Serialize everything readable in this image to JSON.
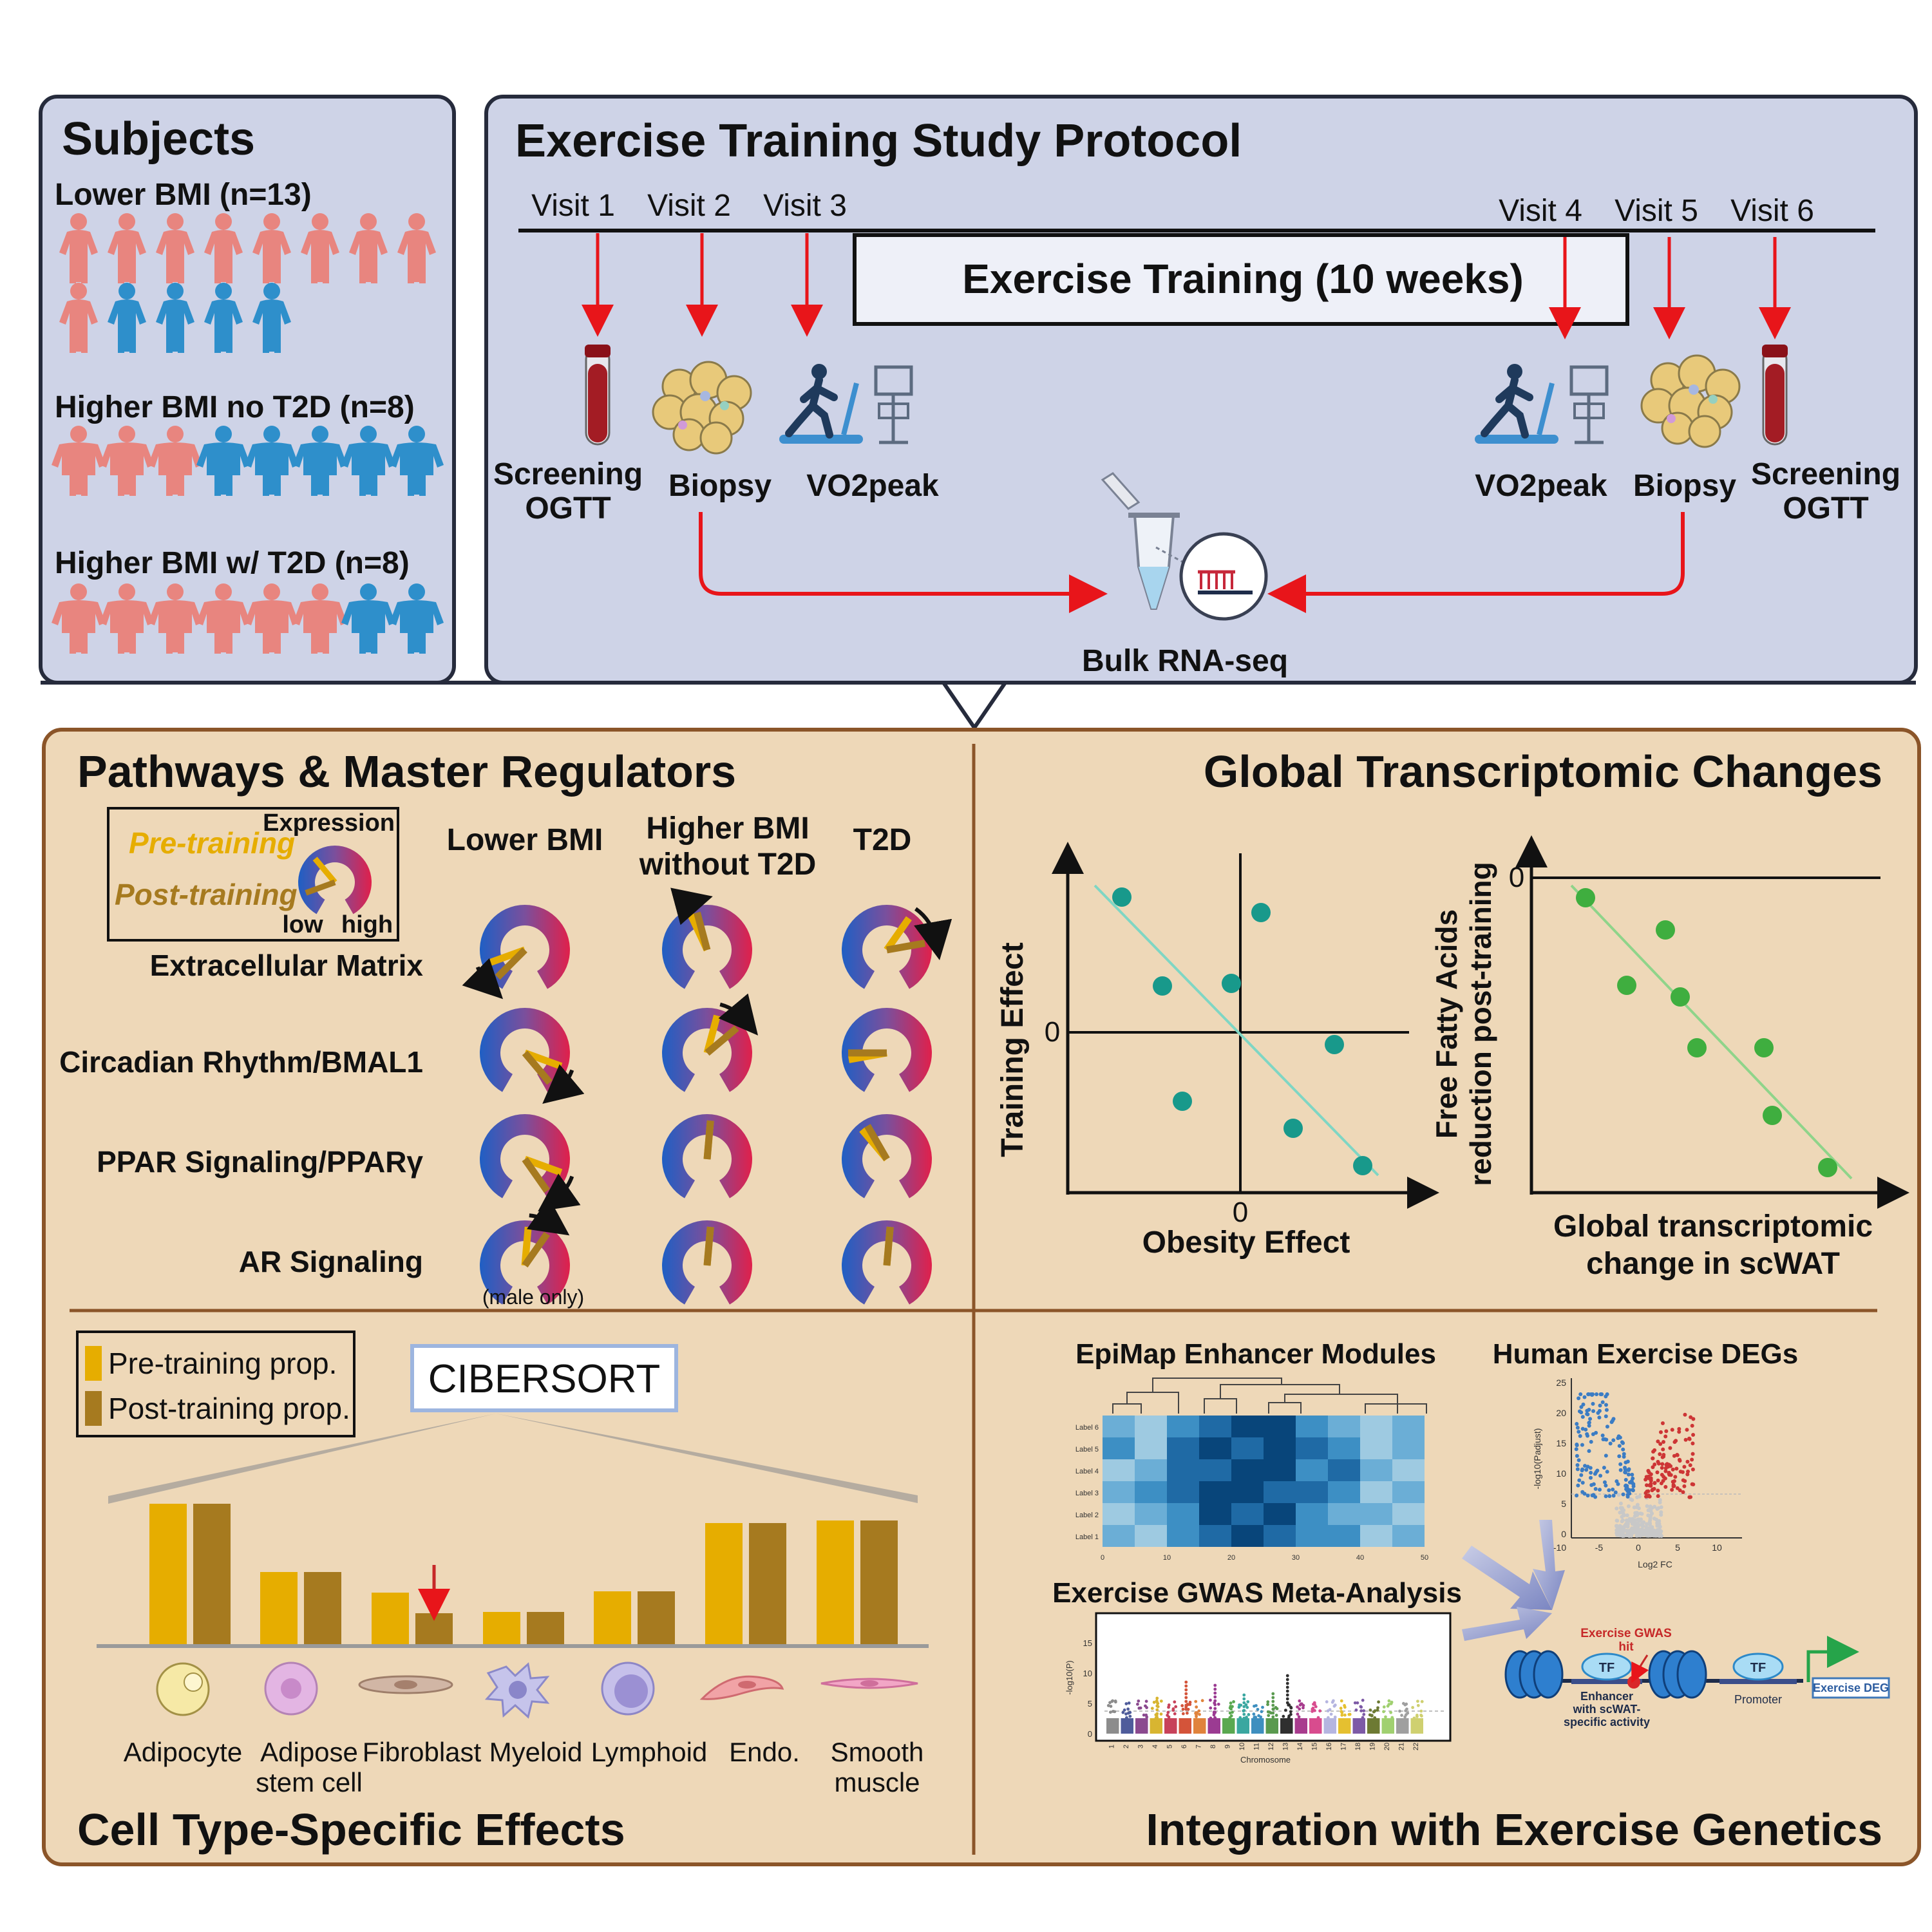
{
  "colors": {
    "top_panel_bg": "#ced3e7",
    "bottom_panel_bg": "#eed8b8",
    "female_person": "#e8857f",
    "male_person": "#2e8fcb",
    "arrow_red": "#e8151a",
    "teal_point": "#18998b",
    "green_point": "#3fae3f",
    "pre_bar": "#e6ad00",
    "post_bar": "#a67a1f"
  },
  "subjects": {
    "title": "Subjects",
    "groups": [
      {
        "label": "Lower BMI (n=13)",
        "female": 9,
        "male": 4,
        "body": "slim"
      },
      {
        "label": "Higher BMI no T2D (n=8)",
        "female": 3,
        "male": 5,
        "body": "heavy"
      },
      {
        "label": "Higher BMI w/ T2D (n=8)",
        "female": 6,
        "male": 2,
        "body": "heavy"
      }
    ]
  },
  "protocol": {
    "title": "Exercise Training Study Protocol",
    "visits": [
      "Visit 1",
      "Visit 2",
      "Visit 3",
      "Visit 4",
      "Visit 5",
      "Visit 6"
    ],
    "training_label": "Exercise Training (10 weeks)",
    "left_labels": {
      "screening": "Screening",
      "ogtt": "OGTT",
      "biopsy": "Biopsy",
      "vo2": "VO2peak"
    },
    "right_labels": {
      "screening": "Screening",
      "ogtt": "OGTT",
      "biopsy": "Biopsy",
      "vo2": "VO2peak"
    },
    "rnaseq": "Bulk RNA-seq"
  },
  "pathways": {
    "title": "Pathways & Master Regulators",
    "legend": {
      "expression": "Expression",
      "pre": "Pre-training",
      "post": "Post-training",
      "low": "low",
      "high": "high"
    },
    "columns": [
      "Lower BMI",
      "Higher BMI without T2D",
      "T2D"
    ],
    "rows": [
      "Extracellular Matrix",
      "Circadian Rhythm/BMAL1",
      "PPAR Signaling/PPARγ",
      "AR Signaling"
    ],
    "note": "(male only)"
  },
  "global": {
    "title": "Global Transcriptomic Changes",
    "left_plot": {
      "ylabel": "Training Effect",
      "xlabel": "Obesity Effect",
      "y_zero": "0",
      "x_zero": "0"
    },
    "right_plot": {
      "ylabel_1": "Free Fatty Acids",
      "ylabel_2": "reduction post-training",
      "xlabel_1": "Global transcriptomic",
      "xlabel_2": "change in scWAT",
      "y_zero": "0"
    }
  },
  "cell": {
    "title": "Cell Type-Specific Effects",
    "legend": {
      "pre": "Pre-training prop.",
      "post": "Post-training prop."
    },
    "method": "CIBERSORT",
    "cells": [
      {
        "l1": "Adipocyte",
        "l2": ""
      },
      {
        "l1": "Adipose",
        "l2": "stem cell"
      },
      {
        "l1": "Fibroblast",
        "l2": ""
      },
      {
        "l1": "Myeloid",
        "l2": ""
      },
      {
        "l1": "Lymphoid",
        "l2": ""
      },
      {
        "l1": "Endo.",
        "l2": ""
      },
      {
        "l1": "Smooth",
        "l2": "muscle"
      }
    ]
  },
  "genetics": {
    "title": "Integration with Exercise Genetics",
    "epimap": "EpiMap Enhancer Modules",
    "degs": "Human Exercise DEGs",
    "gwas": "Exercise GWAS Meta-Analysis",
    "heat_rows": [
      "Label 6",
      "Label 5",
      "Label 4",
      "Label 3",
      "Label 2",
      "Label 1"
    ],
    "heat_x": [
      "0",
      "10",
      "20",
      "30",
      "40",
      "50"
    ],
    "volcano_y": [
      "25",
      "20",
      "15",
      "10",
      "5",
      "0"
    ],
    "volcano_ylabel": "-log10(Padjust)",
    "volcano_x": [
      "-10",
      "-5",
      "0",
      "5",
      "10"
    ],
    "volcano_xlabel": "Log2 FC",
    "manhattan_y": [
      "15",
      "10",
      "5",
      "0"
    ],
    "manhattan_ylabel": "-log10(P)",
    "chromosomes": [
      "1",
      "2",
      "3",
      "4",
      "5",
      "6",
      "7",
      "8",
      "9",
      "10",
      "11",
      "12",
      "13",
      "14",
      "15",
      "16",
      "17",
      "18",
      "19",
      "20",
      "21",
      "22"
    ],
    "chromosome_label": "Chromosome",
    "gwas_hit": "Exercise GWAS hit",
    "tf": "TF",
    "enhancer_1": "Enhancer",
    "enhancer_2": "with scWAT-",
    "enhancer_3": "specific activity",
    "promoter": "Promoter",
    "deg_box": "Exercise DEG"
  }
}
